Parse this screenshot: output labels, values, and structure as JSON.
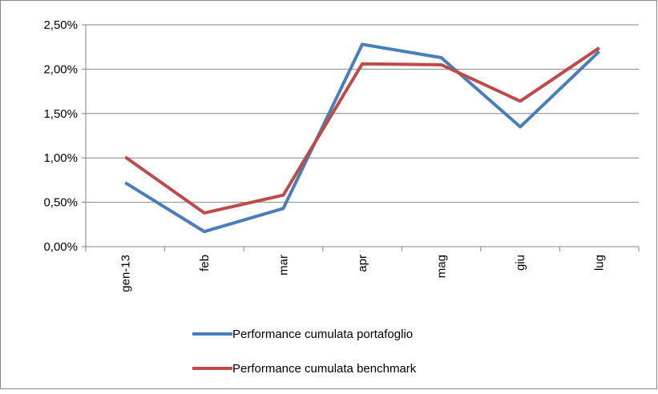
{
  "chart_data": {
    "type": "line",
    "categories": [
      "gen-13",
      "feb",
      "mar",
      "apr",
      "mag",
      "giu",
      "lug"
    ],
    "series": [
      {
        "name": "Performance cumulata portafoglio",
        "color": "#4a7ebb",
        "values": [
          0.72,
          0.17,
          0.43,
          2.28,
          2.13,
          1.35,
          2.2
        ]
      },
      {
        "name": "Performance cumulata benchmark",
        "color": "#be4b48",
        "values": [
          1.01,
          0.38,
          0.58,
          2.06,
          2.05,
          1.64,
          2.24
        ]
      }
    ],
    "ylim": [
      0,
      2.5
    ],
    "yticks": [
      {
        "value": 0,
        "label": "0,00%"
      },
      {
        "value": 0.5,
        "label": "0,50%"
      },
      {
        "value": 1,
        "label": "1,00%"
      },
      {
        "value": 1.5,
        "label": "1,50%"
      },
      {
        "value": 2,
        "label": "2,00%"
      },
      {
        "value": 2.5,
        "label": "2,50%"
      }
    ],
    "grid": true
  }
}
